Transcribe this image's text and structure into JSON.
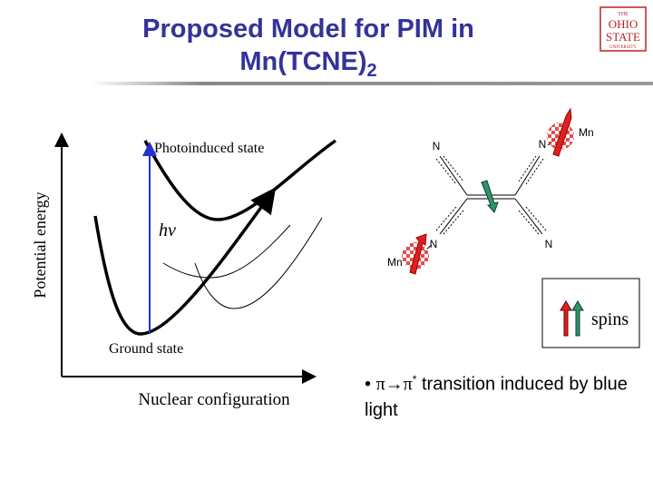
{
  "title": {
    "line1": "Proposed Model for PIM in",
    "line2": "Mn(TCNE)",
    "line2_sub": "2"
  },
  "logo": {
    "top": "THE",
    "line1": "OHIO",
    "line2": "STATE",
    "bottom": "UNIVERSITY"
  },
  "diagram": {
    "y_axis_label": "Potential energy",
    "x_axis_label": "Nuclear configuration",
    "upper_state": "Photoinduced state",
    "excitation": "hν",
    "lower_state": "Ground state"
  },
  "molecule": {
    "atoms": [
      "N",
      "N",
      "N",
      "N"
    ],
    "metals": [
      "Mn",
      "Mn"
    ]
  },
  "legend": {
    "label": "spins"
  },
  "bullet": {
    "from": "π→π",
    "star": "*",
    "text": " transition induced by blue light"
  }
}
